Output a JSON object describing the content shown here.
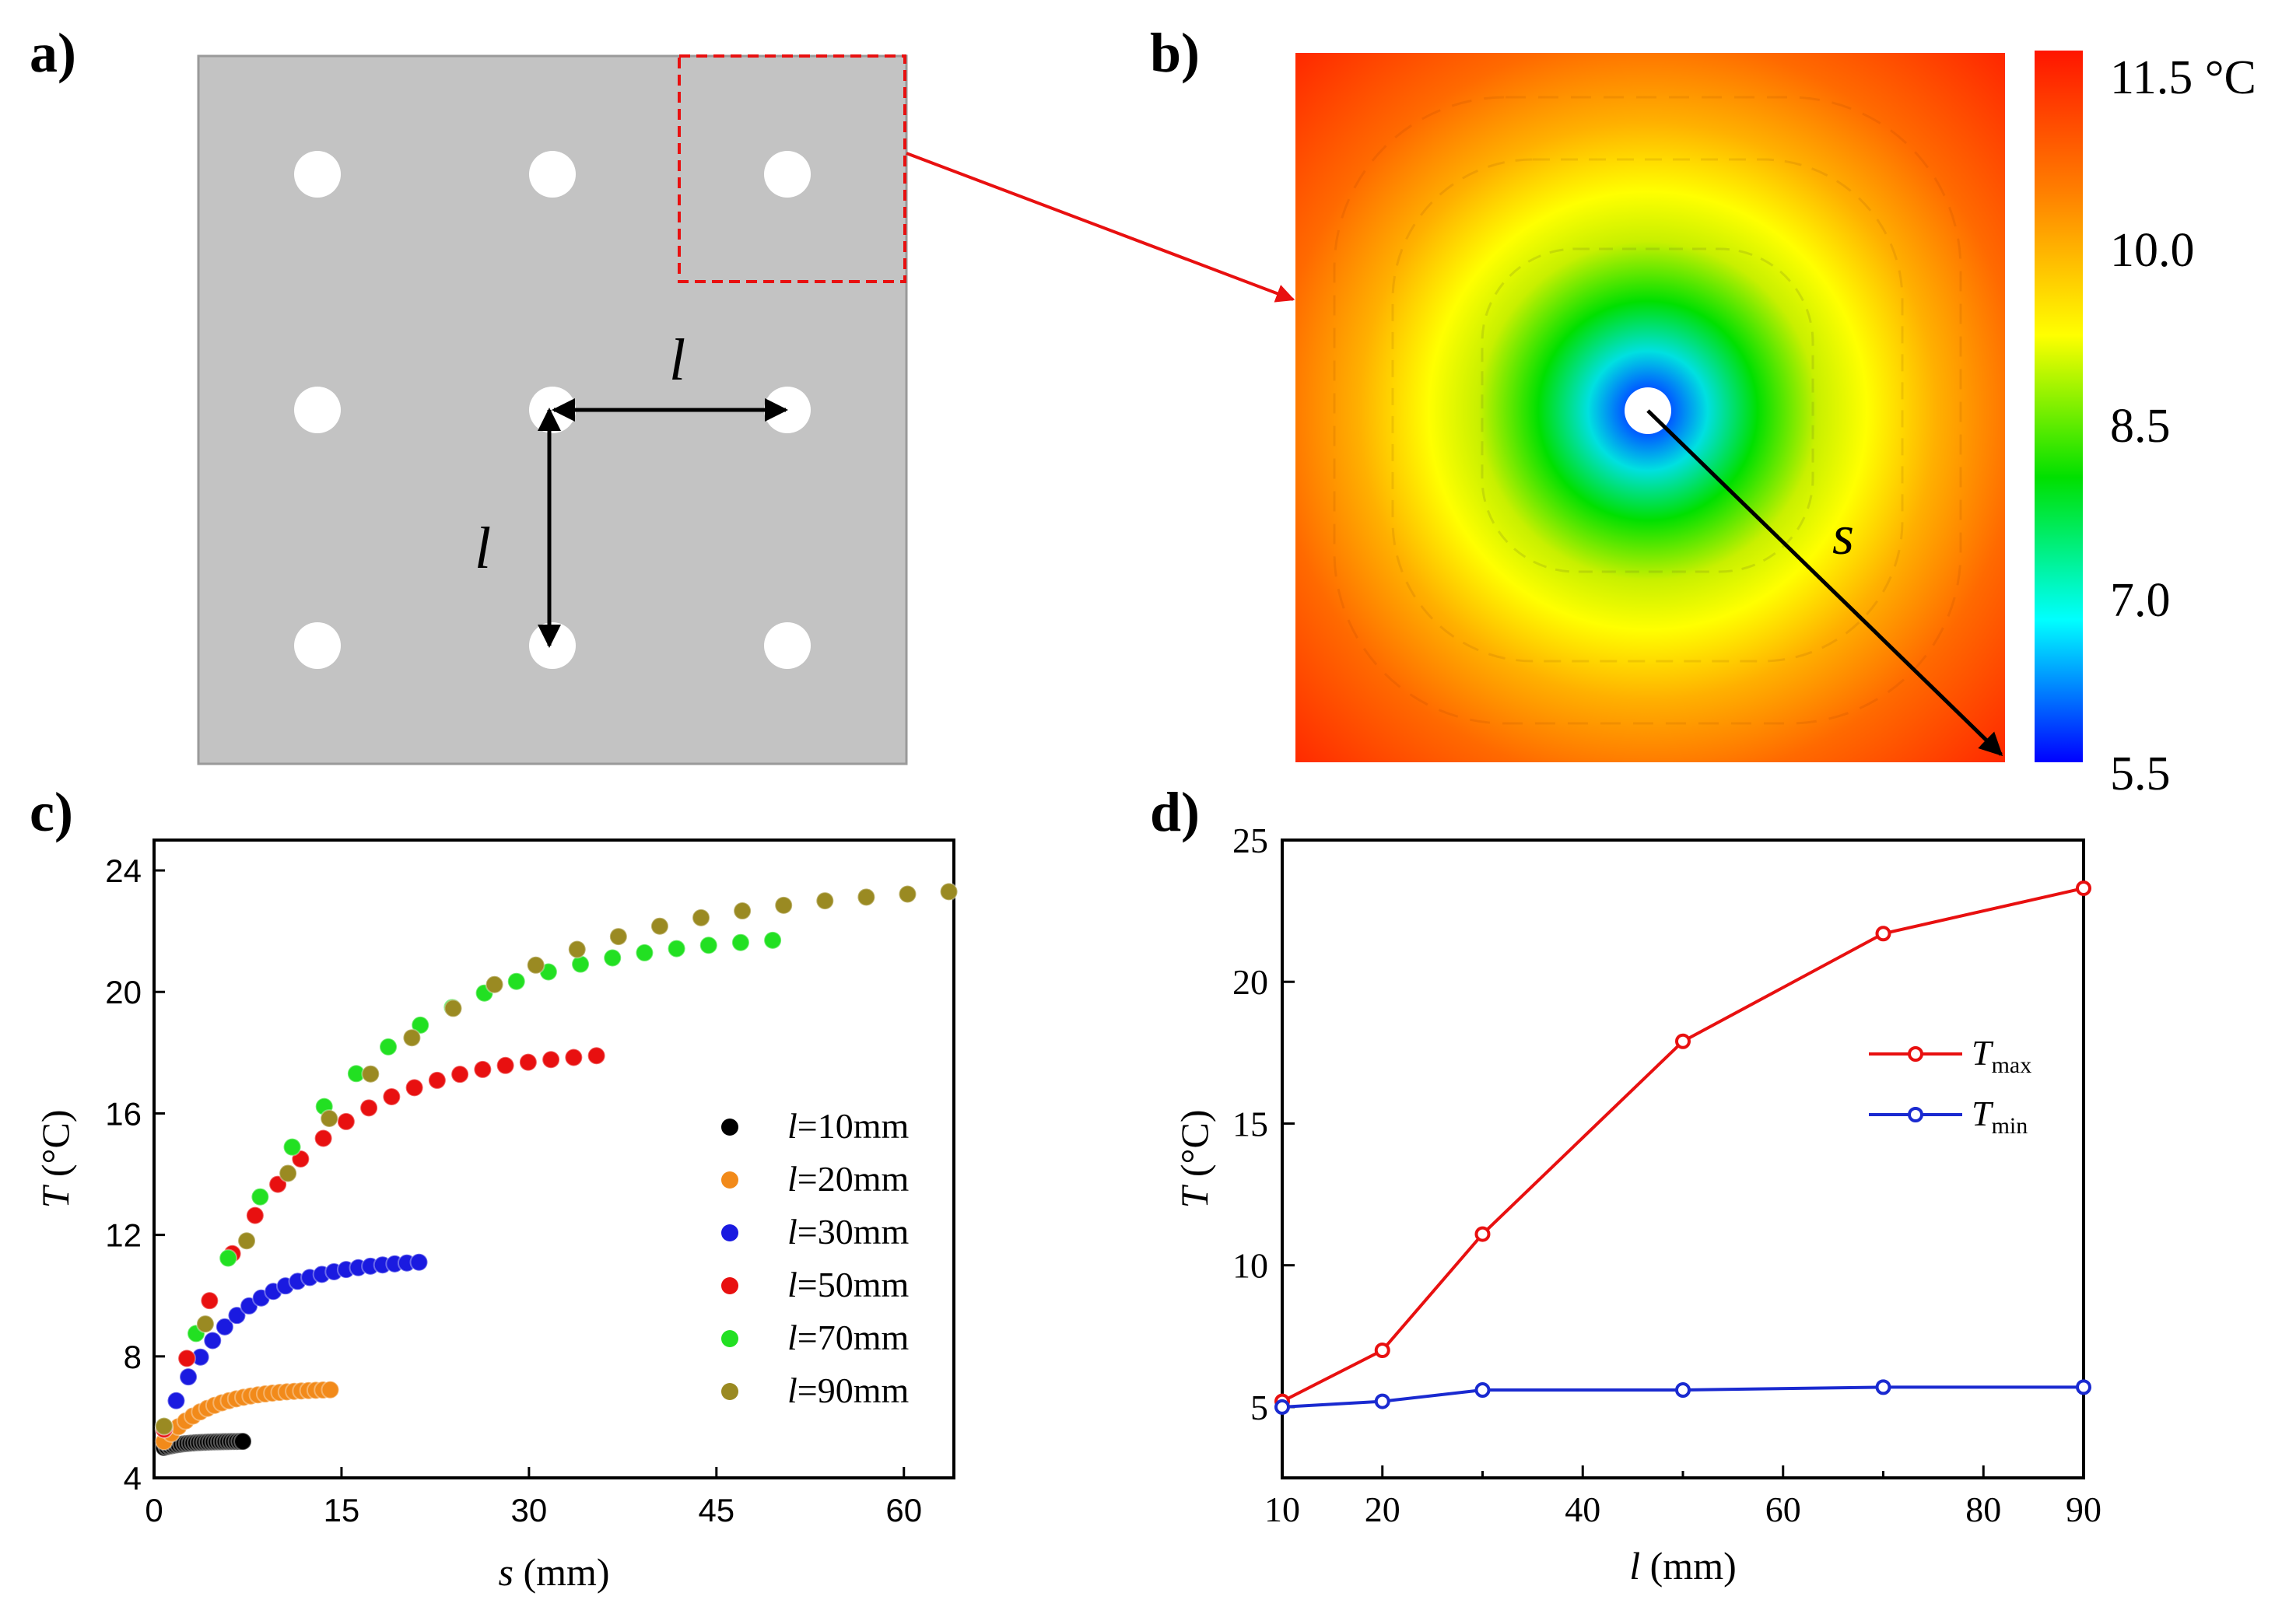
{
  "panel_labels": [
    "a)",
    "b)",
    "c)",
    "d)"
  ],
  "panel_a": {
    "spacing_label": "l",
    "spacing_label_vertical": "l"
  },
  "panel_b": {
    "distance_label": "s",
    "colorbar_ticks": [
      "11.5 °C",
      "10.0",
      "8.5",
      "7.0",
      "5.5"
    ],
    "colorbar_values": [
      11.5,
      10.0,
      8.5,
      7.0,
      5.5
    ],
    "colormap": [
      "#ff1500",
      "#ff8000",
      "#ffff00",
      "#00e000",
      "#00ffff",
      "#0000ff"
    ]
  },
  "chart_data": [
    {
      "type": "scatter",
      "panel": "c",
      "xlabel": "s (mm)",
      "xlabel_var": "s",
      "xlabel_unit": " (mm)",
      "ylabel": "T (°C)",
      "ylabel_var": "T",
      "ylabel_unit": " (°C)",
      "xlim": [
        0,
        64
      ],
      "ylim": [
        4,
        25
      ],
      "xticks": [
        0,
        15,
        30,
        45,
        60
      ],
      "yticks": [
        4,
        8,
        12,
        16,
        20,
        24
      ],
      "legend_position": "right-middle",
      "series": [
        {
          "name": "l=10mm",
          "name_var": "l",
          "name_rest": "=10mm",
          "color": "#000000",
          "Tmin": 5.0,
          "Tmax": 5.2,
          "smax": 7.1,
          "n": 28
        },
        {
          "name": "l=20mm",
          "name_var": "l",
          "name_rest": "=20mm",
          "color": "#f28a1a",
          "Tmin": 5.2,
          "Tmax": 6.9,
          "smax": 14.1,
          "n": 24
        },
        {
          "name": "l=30mm",
          "name_var": "l",
          "name_rest": "=30mm",
          "color": "#1a1ae0",
          "Tmin": 5.6,
          "Tmax": 11.1,
          "smax": 21.2,
          "n": 22
        },
        {
          "name": "l=50mm",
          "name_var": "l",
          "name_rest": "=50mm",
          "color": "#e81010",
          "Tmin": 5.6,
          "Tmax": 17.9,
          "smax": 35.4,
          "n": 20
        },
        {
          "name": "l=70mm",
          "name_var": "l",
          "name_rest": "=70mm",
          "color": "#22e022",
          "Tmin": 5.7,
          "Tmax": 21.7,
          "smax": 49.5,
          "n": 20
        },
        {
          "name": "l=90mm",
          "name_var": "l",
          "name_rest": "=90mm",
          "color": "#9a8a22",
          "Tmin": 5.7,
          "Tmax": 23.3,
          "smax": 63.6,
          "n": 20
        }
      ]
    },
    {
      "type": "line",
      "panel": "d",
      "xlabel": "l (mm)",
      "xlabel_var": "l",
      "xlabel_unit": " (mm)",
      "ylabel": "T (°C)",
      "ylabel_var": "T",
      "ylabel_unit": " (°C)",
      "xlim": [
        10,
        90
      ],
      "ylim": [
        2.5,
        25
      ],
      "xticks": [
        10,
        20,
        40,
        60,
        80,
        90
      ],
      "xticks_minor": [
        30,
        50,
        70
      ],
      "yticks": [
        5,
        10,
        15,
        20,
        25
      ],
      "x": [
        10,
        20,
        30,
        50,
        70,
        90
      ],
      "legend_position": "right-middle",
      "series": [
        {
          "name": "Tmax",
          "name_var": "T",
          "name_sub": "max",
          "color": "#e81010",
          "values": [
            5.2,
            7.0,
            11.1,
            17.9,
            21.7,
            23.3
          ]
        },
        {
          "name": "Tmin",
          "name_var": "T",
          "name_sub": "min",
          "color": "#1a2ad0",
          "values": [
            5.0,
            5.2,
            5.6,
            5.6,
            5.7,
            5.7
          ]
        }
      ]
    }
  ]
}
